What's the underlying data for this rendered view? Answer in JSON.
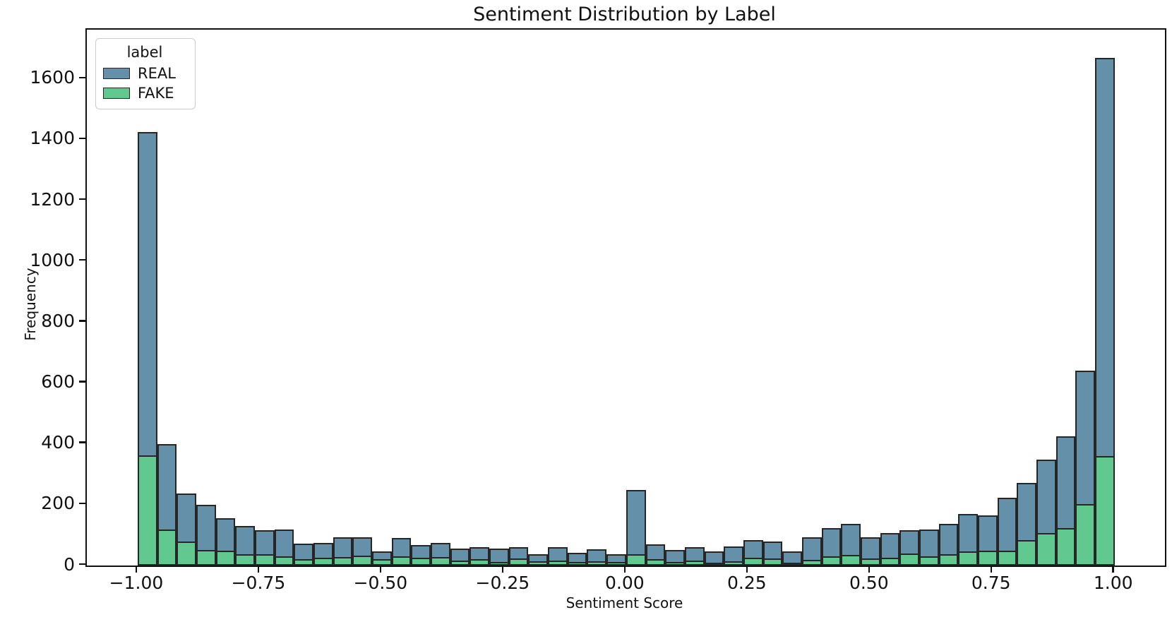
{
  "chart_data": {
    "type": "bar",
    "subtype": "stacked-histogram",
    "title": "Sentiment Distribution by Label",
    "xlabel": "Sentiment Score",
    "ylabel": "Frequency",
    "legend": {
      "title": "label",
      "position": "upper-left",
      "entries": [
        {
          "label": "REAL",
          "color": "#6490aa"
        },
        {
          "label": "FAKE",
          "color": "#61c890"
        }
      ]
    },
    "bins": {
      "start": -1.0,
      "width": 0.04,
      "count": 50
    },
    "stack_note": "FAKE segment drawn at bottom of each bar, REAL stacked on top; values are per-bin frequencies",
    "series": [
      {
        "name": "FAKE",
        "values": [
          362,
          118,
          78,
          51,
          48,
          37,
          37,
          30,
          21,
          25,
          27,
          32,
          21,
          30,
          26,
          28,
          16,
          21,
          12,
          23,
          14,
          16,
          11,
          15,
          11,
          37,
          21,
          12,
          16,
          8,
          14,
          25,
          23,
          10,
          19,
          30,
          35,
          23,
          25,
          40,
          30,
          37,
          46,
          49,
          49,
          84,
          107,
          123,
          202,
          360
        ]
      },
      {
        "name": "REAL",
        "values": [
          1063,
          282,
          160,
          149,
          107,
          93,
          78,
          88,
          51,
          49,
          65,
          61,
          25,
          61,
          41,
          47,
          40,
          40,
          44,
          38,
          24,
          44,
          31,
          38,
          27,
          211,
          49,
          39,
          44,
          38,
          49,
          59,
          55,
          36,
          74,
          93,
          102,
          70,
          82,
          76,
          88,
          100,
          124,
          116,
          174,
          188,
          241,
          302,
          439,
          1310
        ]
      }
    ],
    "xlim": [
      -1.104,
      1.103
    ],
    "ylim": [
      0,
      1762
    ],
    "yticks": [
      0,
      200,
      400,
      600,
      800,
      1000,
      1200,
      1400,
      1600
    ],
    "xtick_values": [
      -1.0,
      -0.75,
      -0.5,
      -0.25,
      0.0,
      0.25,
      0.5,
      0.75,
      1.0
    ],
    "xtick_labels": [
      "−1.00",
      "−0.75",
      "−0.50",
      "−0.25",
      "0.00",
      "0.25",
      "0.50",
      "0.75",
      "1.00"
    ],
    "grid": false,
    "colors": {
      "real": "#6490aa",
      "fake": "#61c890",
      "edge": "#262626",
      "spine": "#111111",
      "background": "#ffffff"
    }
  }
}
